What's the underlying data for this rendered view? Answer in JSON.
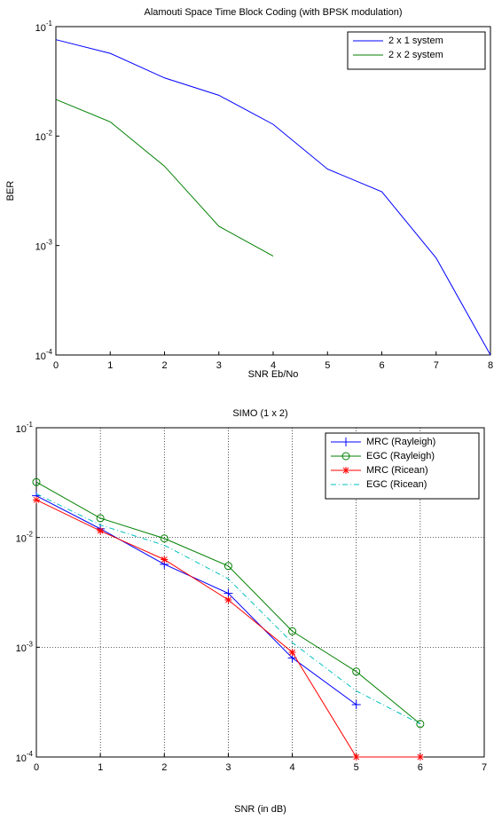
{
  "chart_data": [
    {
      "type": "line",
      "title": "Alamouti Space Time Block Coding (with BPSK modulation)",
      "x_label": "SNR Eb/No",
      "y_label": "BER",
      "x": [
        0,
        1,
        2,
        3,
        4,
        5,
        6,
        7,
        8
      ],
      "series": [
        {
          "name": "2 x 1 system",
          "color": "#0000ff",
          "values": [
            0.076,
            0.057,
            0.034,
            0.0236,
            0.0128,
            0.005,
            0.0031,
            0.00077,
            0.0001
          ]
        },
        {
          "name": "2 x 2 system",
          "color": "#008000",
          "values": [
            0.0216,
            0.0135,
            0.0053,
            0.0015,
            0.0008,
            null,
            null,
            null,
            null
          ]
        }
      ],
      "xlim": [
        0,
        8
      ],
      "xticks": [
        0,
        1,
        2,
        3,
        4,
        5,
        6,
        7,
        8
      ],
      "ylim": [
        0.0001,
        0.1
      ],
      "log_y": true,
      "yticks": [
        {
          "value": 0.0001,
          "label": "10-4"
        },
        {
          "value": 0.001,
          "label": "10-3"
        },
        {
          "value": 0.01,
          "label": "10-2"
        },
        {
          "value": 0.1,
          "label": "10-1"
        }
      ],
      "grid": false,
      "legend": "upper right"
    },
    {
      "type": "line",
      "title": "SIMO (1 x 2)",
      "x_label": "SNR (in dB)",
      "x": [
        0,
        1,
        2,
        3,
        4,
        5,
        6
      ],
      "series": [
        {
          "name": "MRC (Rayleigh)",
          "color": "#0000ff",
          "marker": "+",
          "dash": "solid",
          "values": [
            0.024,
            0.012,
            0.0057,
            0.0031,
            0.0008,
            0.0003,
            null
          ]
        },
        {
          "name": "EGC (Rayleigh)",
          "color": "#008000",
          "marker": "o",
          "dash": "solid",
          "values": [
            0.032,
            0.015,
            0.0098,
            0.0055,
            0.0014,
            0.0006,
            0.0002
          ]
        },
        {
          "name": "MRC (Ricean)",
          "color": "#ff0000",
          "marker": "*",
          "dash": "solid",
          "values": [
            0.022,
            0.0115,
            0.0063,
            0.0027,
            0.0009,
            0.0001,
            0.0001
          ]
        },
        {
          "name": "EGC (Ricean)",
          "color": "#00bfbf",
          "marker": "none",
          "dash": "dashdot",
          "values": [
            0.025,
            0.013,
            0.0085,
            0.0042,
            0.0011,
            0.0004,
            0.0002
          ]
        }
      ],
      "xlim": [
        0,
        7
      ],
      "xticks": [
        0,
        1,
        2,
        3,
        4,
        5,
        6,
        7
      ],
      "ylim": [
        0.0001,
        0.1
      ],
      "log_y": true,
      "yticks": [
        {
          "value": 0.0001,
          "label": "10-4"
        },
        {
          "value": 0.001,
          "label": "10-3"
        },
        {
          "value": 0.01,
          "label": "10-2"
        },
        {
          "value": 0.1,
          "label": "10-1"
        }
      ],
      "grid": true,
      "legend": "upper right"
    }
  ]
}
